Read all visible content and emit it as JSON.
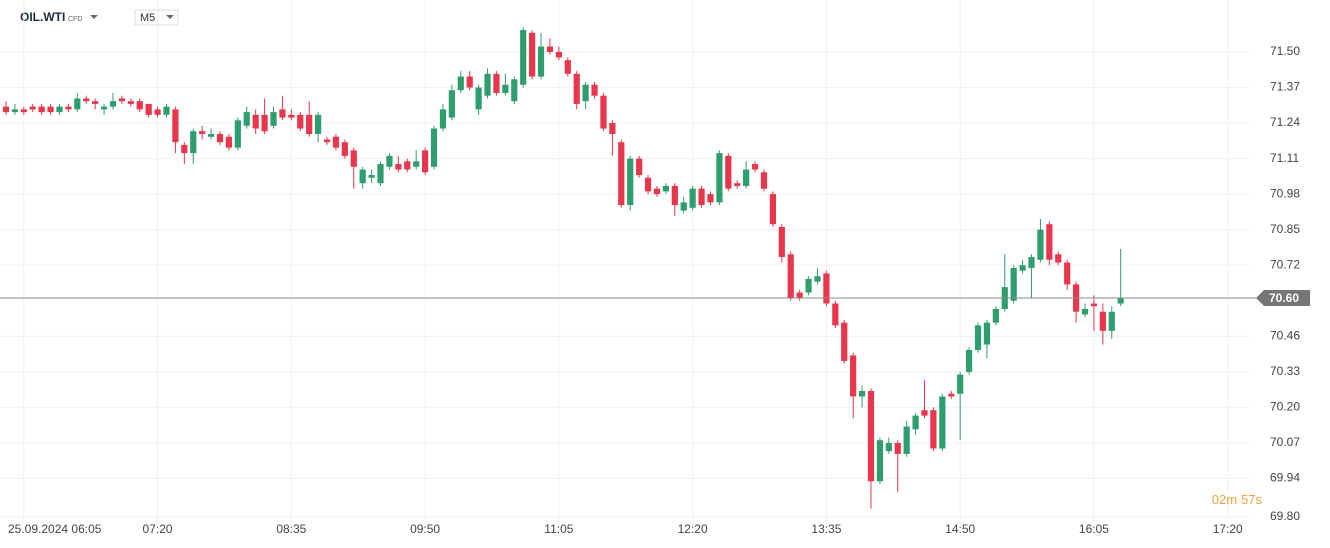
{
  "chart_data": {
    "type": "candlestick",
    "symbol": "OIL.WTI",
    "instrument_type": "CFD",
    "timeframe": "M5",
    "countdown": [
      "02m",
      "57s"
    ],
    "up_color": "#2f9e6f",
    "down_color": "#e8374c",
    "grid": true,
    "xlim": [
      -0.67,
      139.5
    ],
    "xticks": [
      {
        "value": 2,
        "label": "25.09.2024 06:05"
      },
      {
        "value": 17,
        "label": "07:20"
      },
      {
        "value": 32,
        "label": "08:35"
      },
      {
        "value": 47,
        "label": "09:50"
      },
      {
        "value": 62,
        "label": "11:05"
      },
      {
        "value": 77,
        "label": "12:20"
      },
      {
        "value": 92,
        "label": "13:35"
      },
      {
        "value": 107,
        "label": "14:50"
      },
      {
        "value": 122,
        "label": "16:05"
      },
      {
        "value": 137,
        "label": "17:20"
      }
    ],
    "ylim": [
      69.77,
      71.69
    ],
    "yticks": [
      {
        "value": 71.5,
        "label": "71.50"
      },
      71.37,
      71.24,
      71.11,
      70.98,
      70.85,
      70.72,
      70.46,
      70.33,
      {
        "value": 70.2,
        "label": "70.20"
      },
      70.07,
      69.94,
      {
        "value": 69.8,
        "label": "69.80"
      }
    ],
    "current_price": {
      "value": 70.6,
      "label": "70.60"
    },
    "open": [
      71.3,
      71.28,
      71.29,
      71.3,
      71.3,
      71.3,
      71.28,
      71.3,
      71.29,
      71.33,
      71.32,
      71.29,
      71.3,
      71.33,
      71.32,
      71.32,
      71.31,
      71.29,
      71.27,
      71.29,
      71.16,
      71.13,
      71.21,
      71.19,
      71.2,
      71.19,
      71.15,
      71.23,
      71.27,
      71.27,
      71.23,
      71.29,
      71.27,
      71.27,
      71.27,
      71.2,
      71.18,
      71.19,
      71.17,
      71.14,
      71.02,
      71.04,
      71.02,
      71.08,
      71.09,
      71.1,
      71.08,
      71.14,
      71.08,
      71.22,
      71.26,
      71.36,
      71.41,
      71.29,
      71.34,
      71.42,
      71.35,
      71.32,
      71.38,
      71.57,
      71.41,
      71.52,
      71.5,
      71.47,
      71.42,
      71.32,
      71.38,
      71.34,
      71.24,
      71.17,
      70.94,
      71.11,
      71.04,
      71.0,
      70.99,
      71.01,
      70.92,
      70.93,
      71.0,
      70.98,
      70.95,
      71.12,
      71.02,
      71.01,
      71.09,
      71.06,
      70.98,
      70.86,
      70.76,
      70.62,
      70.62,
      70.66,
      70.69,
      70.58,
      70.51,
      70.39,
      70.24,
      70.26,
      69.93,
      70.04,
      70.07,
      70.03,
      70.12,
      70.19,
      70.19,
      70.05,
      70.25,
      70.25,
      70.33,
      70.41,
      70.43,
      70.51,
      70.56,
      70.59,
      70.7,
      70.71,
      70.74,
      70.87,
      70.76,
      70.73,
      70.65,
      70.54,
      70.58,
      70.55,
      70.48,
      70.58
    ],
    "high": [
      71.32,
      71.31,
      71.3,
      71.31,
      71.31,
      71.31,
      71.31,
      71.31,
      71.35,
      71.34,
      71.33,
      71.31,
      71.35,
      71.34,
      71.33,
      71.33,
      71.31,
      71.3,
      71.31,
      71.3,
      71.17,
      71.22,
      71.23,
      71.22,
      71.21,
      71.2,
      71.26,
      71.3,
      71.29,
      71.33,
      71.3,
      71.34,
      71.29,
      71.28,
      71.32,
      71.28,
      71.19,
      71.2,
      71.18,
      71.15,
      71.08,
      71.07,
      71.1,
      71.13,
      71.12,
      71.11,
      71.14,
      71.15,
      71.23,
      71.31,
      71.38,
      71.43,
      71.43,
      71.38,
      71.44,
      71.43,
      71.42,
      71.41,
      71.59,
      71.58,
      71.57,
      71.55,
      71.52,
      71.48,
      71.43,
      71.39,
      71.39,
      71.35,
      71.25,
      71.18,
      71.12,
      71.12,
      71.05,
      71.01,
      71.02,
      71.02,
      70.97,
      71.01,
      71.01,
      70.99,
      71.14,
      71.13,
      71.03,
      71.1,
      71.1,
      71.07,
      70.99,
      70.87,
      70.77,
      70.63,
      70.68,
      70.71,
      70.7,
      70.59,
      70.52,
      70.4,
      70.28,
      70.27,
      70.09,
      70.09,
      70.08,
      70.15,
      70.18,
      70.3,
      70.2,
      70.25,
      70.26,
      70.33,
      70.42,
      70.51,
      70.52,
      70.57,
      70.76,
      70.72,
      70.74,
      70.76,
      70.89,
      70.88,
      70.77,
      70.74,
      70.66,
      70.58,
      70.61,
      70.58,
      70.57,
      70.78
    ],
    "low": [
      71.27,
      71.27,
      71.27,
      71.28,
      71.27,
      71.27,
      71.27,
      71.28,
      71.28,
      71.31,
      71.29,
      71.27,
      71.29,
      71.31,
      71.3,
      71.28,
      71.26,
      71.26,
      71.26,
      71.13,
      71.09,
      71.09,
      71.18,
      71.18,
      71.16,
      71.14,
      71.14,
      71.22,
      71.2,
      71.2,
      71.22,
      71.25,
      71.25,
      71.21,
      71.19,
      71.17,
      71.16,
      71.14,
      71.11,
      71.0,
      71.0,
      71.02,
      71.01,
      71.07,
      71.06,
      71.06,
      71.07,
      71.05,
      71.07,
      71.21,
      71.25,
      71.35,
      71.36,
      71.27,
      71.33,
      71.34,
      71.34,
      71.31,
      71.37,
      71.4,
      71.4,
      71.49,
      71.47,
      71.41,
      71.29,
      71.29,
      71.33,
      71.21,
      71.12,
      70.93,
      70.92,
      71.04,
      70.98,
      70.97,
      70.98,
      70.9,
      70.91,
      70.92,
      70.93,
      70.94,
      70.94,
      70.99,
      71.0,
      71.0,
      71.06,
      70.99,
      70.86,
      70.73,
      70.59,
      70.59,
      70.61,
      70.65,
      70.57,
      70.49,
      70.36,
      70.16,
      70.2,
      69.83,
      69.92,
      70.03,
      69.89,
      70.02,
      70.1,
      70.16,
      70.04,
      70.04,
      70.23,
      70.08,
      70.32,
      70.4,
      70.38,
      70.5,
      70.55,
      70.58,
      70.69,
      70.6,
      70.73,
      70.72,
      70.72,
      70.63,
      70.51,
      70.53,
      70.48,
      70.43,
      70.45,
      70.57
    ],
    "close": [
      71.28,
      71.29,
      71.28,
      71.29,
      71.28,
      71.28,
      71.3,
      71.29,
      71.33,
      71.32,
      71.31,
      71.3,
      71.32,
      71.32,
      71.31,
      71.29,
      71.27,
      71.27,
      71.3,
      71.17,
      71.13,
      71.21,
      71.2,
      71.2,
      71.17,
      71.15,
      71.25,
      71.28,
      71.22,
      71.21,
      71.28,
      71.26,
      71.26,
      71.22,
      71.2,
      71.27,
      71.17,
      71.15,
      71.12,
      71.08,
      71.07,
      71.05,
      71.09,
      71.12,
      71.07,
      71.07,
      71.1,
      71.06,
      71.22,
      71.29,
      71.36,
      71.41,
      71.37,
      71.37,
      71.42,
      71.35,
      71.38,
      71.4,
      71.58,
      71.41,
      71.52,
      71.5,
      71.48,
      71.42,
      71.31,
      71.38,
      71.34,
      71.22,
      71.2,
      70.94,
      71.11,
      71.05,
      70.99,
      70.98,
      71.01,
      70.94,
      70.95,
      71.0,
      70.94,
      70.95,
      71.13,
      71.0,
      71.01,
      71.07,
      71.07,
      71.0,
      70.87,
      70.75,
      70.6,
      70.6,
      70.67,
      70.68,
      70.58,
      70.5,
      70.37,
      70.24,
      70.26,
      69.93,
      70.08,
      70.07,
      70.03,
      70.13,
      70.17,
      70.17,
      70.05,
      70.24,
      70.24,
      70.32,
      70.41,
      70.5,
      70.51,
      70.56,
      70.64,
      70.71,
      70.72,
      70.75,
      70.85,
      70.74,
      70.73,
      70.65,
      70.55,
      70.56,
      70.57,
      70.48,
      70.55,
      70.6
    ]
  }
}
